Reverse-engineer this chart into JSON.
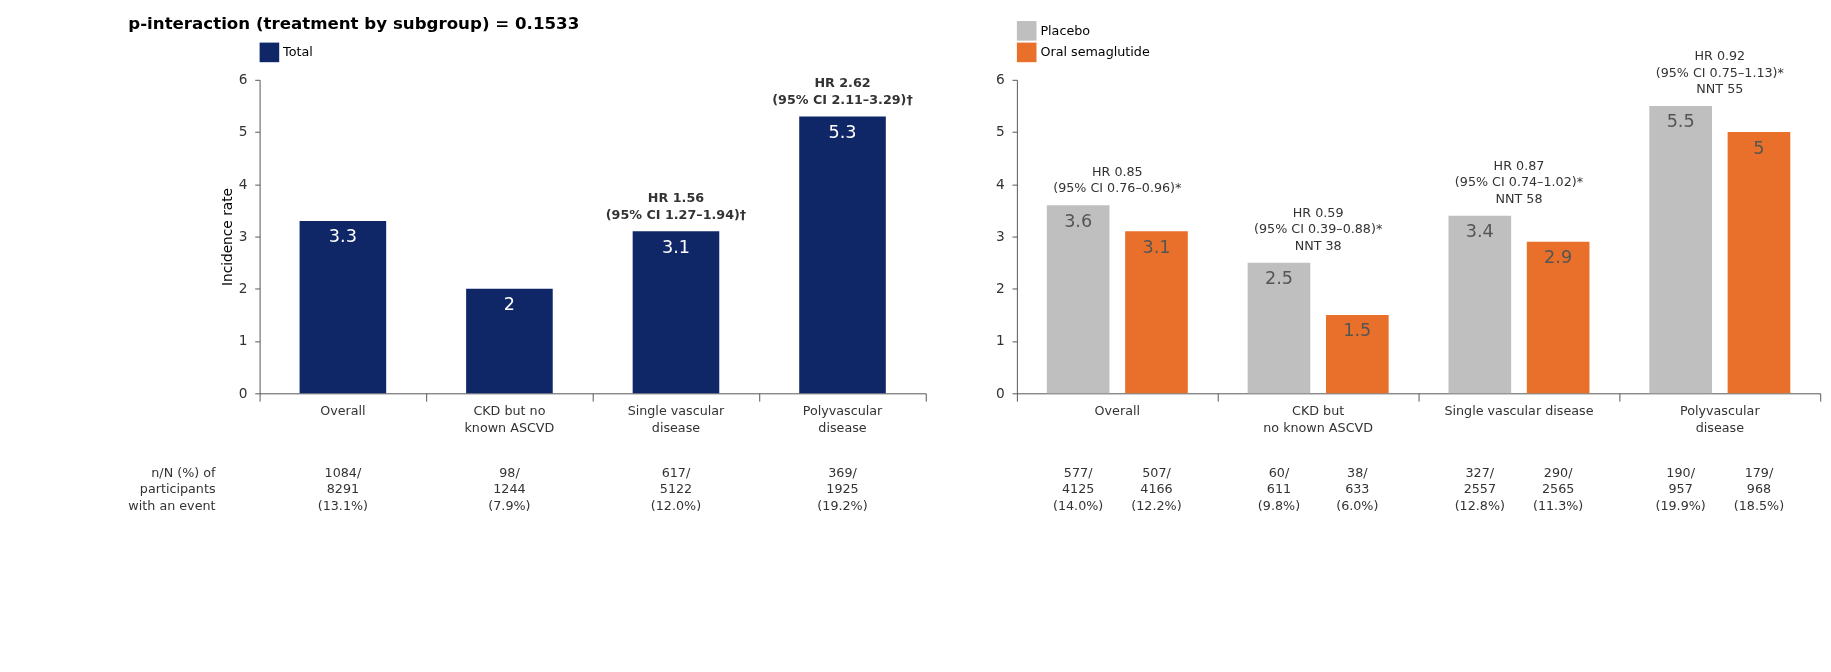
{
  "chart_data": [
    {
      "type": "bar",
      "title": "p-interaction (treatment by subgroup) = 0.1533",
      "ylabel": "Incidence rate",
      "categories": [
        "Overall",
        "CKD but no\nknown ASCVD",
        "Single vascular\ndisease",
        "Polyvascular\ndisease"
      ],
      "series": [
        {
          "name": "Total",
          "color": "#0f2667",
          "values": [
            3.3,
            2,
            3.1,
            5.3
          ]
        }
      ],
      "ylim": [
        0,
        6
      ],
      "yticks": [
        0,
        1,
        2,
        3,
        4,
        5,
        6
      ],
      "grid": false,
      "legend": "top left",
      "data_labels": true,
      "annotations": [
        "HR 1.56\n(95% CI 1.27–1.94)†",
        "HR 2.62\n(95% CI 2.11–3.29)†",
        "n/N (%) of\nparticipants\nwith an event",
        "1084/\n8291\n(13.1%)",
        "98/\n1244\n(7.9%)",
        "617/\n5122\n(12.0%)",
        "369/\n1925\n(19.2%)"
      ]
    },
    {
      "type": "bar",
      "categories": [
        "Overall",
        "CKD but\nno known ASCVD",
        "Single vascular disease",
        "Polyvascular\ndisease"
      ],
      "series": [
        {
          "name": "Placebo",
          "color": "#bfbfbf",
          "values": [
            3.6,
            2.5,
            3.4,
            5.5
          ]
        },
        {
          "name": "Oral semaglutide",
          "color": "#e8702a",
          "values": [
            3.1,
            1.5,
            2.9,
            5
          ]
        }
      ],
      "ylim": [
        0,
        6
      ],
      "yticks": [
        0,
        1,
        2,
        3,
        4,
        5,
        6
      ],
      "grid": false,
      "legend": "top left",
      "data_labels": true,
      "annotations": [
        "HR 0.85\n(95% CI 0.76–0.96)*",
        "HR 0.59\n(95% CI 0.39–0.88)*\nNNT 38",
        "HR 0.87\n(95% CI 0.74–1.02)*\nNNT 58",
        "HR 0.92\n(95% CI 0.75–1.13)*\nNNT 55",
        "577/\n4125\n(14.0%)",
        "507/\n4166\n(12.2%)",
        "60/\n611\n(9.8%)",
        "38/\n633\n(6.0%)",
        "327/\n2557\n(12.8%)",
        "290/\n2565\n(11.3%)",
        "190/\n957\n(19.9%)",
        "179/\n968\n(18.5%)"
      ]
    }
  ]
}
